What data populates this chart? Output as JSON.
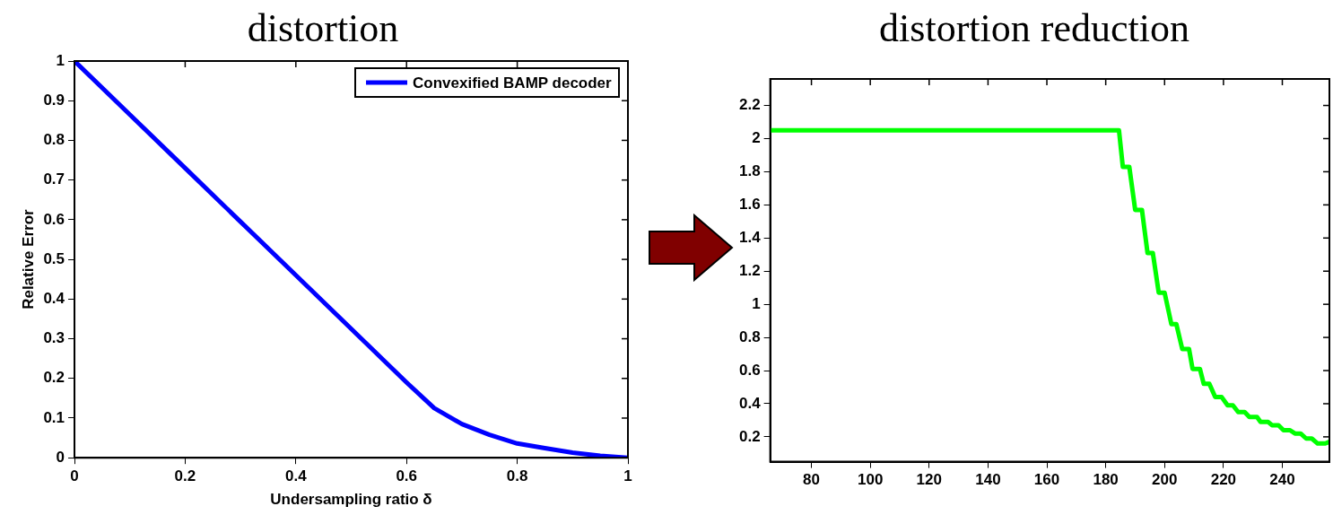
{
  "chart_data": [
    {
      "type": "line",
      "title": "distortion",
      "xlabel": "Undersampling ratio δ",
      "ylabel": "Relative Error",
      "x": [
        0,
        0.1,
        0.2,
        0.3,
        0.4,
        0.5,
        0.6,
        0.65,
        0.7,
        0.75,
        0.8,
        0.85,
        0.9,
        0.95,
        1
      ],
      "series": [
        {
          "name": "Convexified BAMP decoder",
          "color": "#0000ff",
          "values": [
            1,
            0.865,
            0.73,
            0.595,
            0.46,
            0.325,
            0.19,
            0.125,
            0.085,
            0.058,
            0.036,
            0.024,
            0.013,
            0.005,
            0
          ]
        }
      ],
      "xlim": [
        0,
        1
      ],
      "xticks": [
        0,
        0.2,
        0.4,
        0.6,
        0.8,
        1
      ],
      "ylim": [
        0,
        1
      ],
      "yticks": [
        0,
        0.1,
        0.2,
        0.3,
        0.4,
        0.5,
        0.6,
        0.7,
        0.8,
        0.9,
        1
      ],
      "grid": false,
      "legend": "top right",
      "marker": "none",
      "line_style": "solid"
    },
    {
      "type": "line",
      "title": "distortion reduction",
      "x": [
        66,
        184.5,
        185.8,
        188,
        190,
        192.3,
        194.2,
        196,
        198,
        200,
        202.3,
        204,
        206,
        208.3,
        209.5,
        212,
        213.3,
        215.2,
        217.2,
        219.4,
        221.4,
        223.2,
        225,
        227.2,
        228.8,
        231.4,
        232.6,
        235.2,
        236.5,
        238.7,
        240.4,
        242.6,
        244.3,
        246.2,
        248.1,
        250,
        252,
        254.6,
        256
      ],
      "series": [
        {
          "color": "#00ff00",
          "values": [
            2.05,
            2.05,
            1.83,
            1.83,
            1.57,
            1.57,
            1.31,
            1.31,
            1.07,
            1.07,
            0.88,
            0.88,
            0.73,
            0.73,
            0.61,
            0.61,
            0.52,
            0.52,
            0.44,
            0.44,
            0.39,
            0.39,
            0.35,
            0.35,
            0.32,
            0.32,
            0.29,
            0.29,
            0.27,
            0.27,
            0.24,
            0.24,
            0.22,
            0.22,
            0.19,
            0.19,
            0.16,
            0.16,
            0.17
          ]
        }
      ],
      "xlim": [
        66,
        256
      ],
      "xticks": [
        80,
        100,
        120,
        140,
        160,
        180,
        200,
        220,
        240
      ],
      "ylim": [
        0.05,
        2.36
      ],
      "yticks": [
        0.2,
        0.4,
        0.6,
        0.8,
        1,
        1.2,
        1.4,
        1.6,
        1.8,
        2,
        2.2
      ],
      "grid": false,
      "legend": false,
      "marker": "none",
      "line_style": "solid"
    }
  ]
}
